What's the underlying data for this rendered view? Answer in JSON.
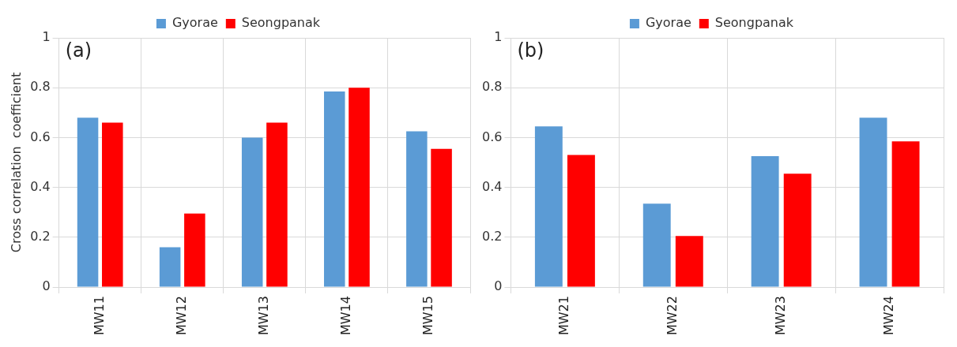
{
  "chart_data": [
    {
      "type": "bar",
      "annotations": [
        "(a)"
      ],
      "ylabel": "Cross correlation  coefficient",
      "categories": [
        "MW11",
        "MW12",
        "MW13",
        "MW14",
        "MW15"
      ],
      "series": [
        {
          "name": "Gyorae",
          "color": "#5b9bd5",
          "values": [
            0.68,
            0.16,
            0.6,
            0.785,
            0.625
          ]
        },
        {
          "name": "Seongpanak",
          "color": "#ff0000",
          "values": [
            0.66,
            0.295,
            0.66,
            0.8,
            0.555
          ]
        }
      ],
      "ylim": [
        0,
        1
      ],
      "yticks": [
        0,
        0.2,
        0.4,
        0.6,
        0.8,
        1
      ],
      "grid": true,
      "legend": "top"
    },
    {
      "type": "bar",
      "annotations": [
        "(b)"
      ],
      "categories": [
        "MW21",
        "MW22",
        "MW23",
        "MW24"
      ],
      "series": [
        {
          "name": "Gyorae",
          "color": "#5b9bd5",
          "values": [
            0.645,
            0.335,
            0.525,
            0.68
          ]
        },
        {
          "name": "Seongpanak",
          "color": "#ff0000",
          "values": [
            0.53,
            0.205,
            0.455,
            0.585
          ]
        }
      ],
      "ylim": [
        0,
        1
      ],
      "yticks": [
        0,
        0.2,
        0.4,
        0.6,
        0.8,
        1
      ],
      "grid": true,
      "legend": "top"
    }
  ]
}
